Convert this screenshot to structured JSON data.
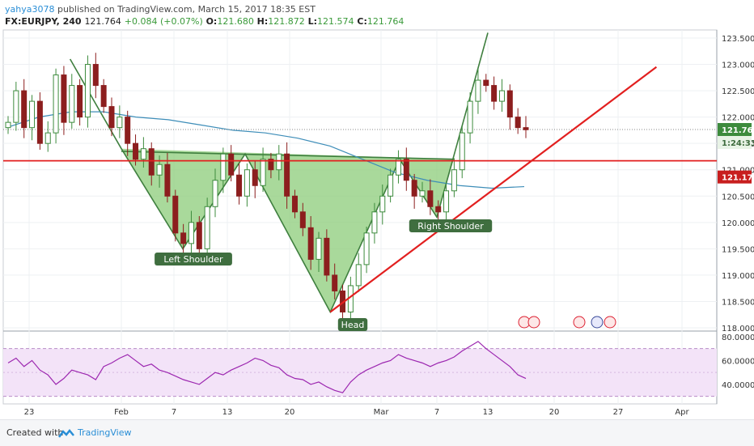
{
  "header": {
    "author": "yahya3078",
    "published_text": "published on TradingView.com, March 15, 2017 18:35 EST"
  },
  "quote": {
    "symbol": "FX:EURJPY, 240",
    "last": "121.764",
    "change": "+0.084 (+0.07%)",
    "o_label": "O:",
    "o": "121.680",
    "h_label": "H:",
    "h": "121.872",
    "l_label": "L:",
    "l": "121.574",
    "c_label": "C:",
    "c": "121.764"
  },
  "footer": {
    "created_label": "Created with",
    "brand": "TradingView"
  },
  "colors": {
    "bull": "#3d8b3d",
    "bear": "#8c1e1e",
    "pattern_fill": "#8ccc7a",
    "trend_red": "#e21f1f",
    "ma": "#3d8db8",
    "rsi": "#9c27b0",
    "rsi_band": "#f3e3f8"
  },
  "chart_data": [
    {
      "type": "candlestick",
      "symbol": "FX:EURJPY",
      "interval": "240",
      "y_axis_ticks": [
        "123.500",
        "123.000",
        "122.500",
        "122.000",
        "121.500",
        "121.000",
        "120.500",
        "120.000",
        "119.500",
        "119.000",
        "118.500",
        "118.000"
      ],
      "ylim": [
        118.0,
        123.6
      ],
      "x_axis_ticks": [
        "23",
        "Feb",
        "7",
        "13",
        "20",
        "Mar",
        "7",
        "13",
        "20",
        "27",
        "Apr"
      ],
      "price_labels": {
        "last": "121.764",
        "countdown": "1:24:33",
        "horizontal_line": "121.170"
      },
      "horizontal_line_level": 121.17,
      "pattern": {
        "name": "Inverse Head and Shoulders",
        "labels": [
          "Left Shoulder",
          "Head",
          "Right Shoulder"
        ],
        "points": [
          {
            "date": "Jan 27",
            "price": 123.1
          },
          {
            "date": "Feb 1",
            "price": 121.4
          },
          {
            "date": "Feb 8",
            "price": 119.5
          },
          {
            "date": "Feb 15",
            "price": 121.3
          },
          {
            "date": "Feb 24",
            "price": 118.3
          },
          {
            "date": "Mar 3",
            "price": 121.2
          },
          {
            "date": "Mar 7",
            "price": 120.1
          },
          {
            "date": "Mar 13",
            "price": 123.6
          }
        ],
        "neckline": [
          {
            "date": "Feb 1",
            "price": 121.35
          },
          {
            "date": "Mar 9",
            "price": 121.2
          }
        ]
      },
      "trendline": [
        {
          "date": "Feb 24",
          "price": 118.3
        },
        {
          "date": "Mar 30",
          "price": 122.95
        }
      ],
      "ma_series": [
        {
          "x": 0,
          "y": 121.8
        },
        {
          "x": 40,
          "y": 122.0
        },
        {
          "x": 80,
          "y": 122.1
        },
        {
          "x": 120,
          "y": 122.1
        },
        {
          "x": 160,
          "y": 122.0
        },
        {
          "x": 200,
          "y": 121.95
        },
        {
          "x": 240,
          "y": 121.85
        },
        {
          "x": 280,
          "y": 121.75
        },
        {
          "x": 320,
          "y": 121.7
        },
        {
          "x": 360,
          "y": 121.6
        },
        {
          "x": 400,
          "y": 121.45
        },
        {
          "x": 440,
          "y": 121.2
        },
        {
          "x": 480,
          "y": 120.95
        },
        {
          "x": 520,
          "y": 120.8
        },
        {
          "x": 560,
          "y": 120.7
        },
        {
          "x": 600,
          "y": 120.65
        },
        {
          "x": 640,
          "y": 120.68
        }
      ],
      "closes": [
        121.9,
        122.5,
        121.8,
        122.3,
        121.5,
        121.7,
        122.8,
        121.9,
        122.6,
        122.0,
        123.0,
        122.6,
        122.2,
        121.8,
        122.0,
        121.5,
        121.2,
        121.4,
        120.9,
        121.1,
        120.5,
        119.8,
        119.6,
        120.0,
        119.5,
        120.3,
        120.8,
        121.3,
        120.9,
        120.5,
        121.0,
        120.7,
        121.2,
        121.0,
        121.3,
        120.5,
        120.2,
        119.9,
        119.3,
        119.7,
        119.0,
        118.7,
        118.3,
        118.8,
        119.2,
        119.8,
        120.2,
        120.5,
        120.9,
        121.2,
        120.8,
        120.5,
        120.6,
        120.3,
        120.2,
        120.6,
        121.0,
        121.7,
        122.3,
        122.7,
        122.6,
        122.3,
        122.5,
        122.0,
        121.8,
        121.76
      ],
      "rsi": {
        "ticks": [
          "80.0000",
          "60.0000",
          "40.0000"
        ],
        "ylim": [
          25,
          82
        ],
        "upper": 70,
        "lower": 30,
        "values": [
          58,
          62,
          55,
          60,
          52,
          48,
          40,
          45,
          52,
          50,
          48,
          44,
          55,
          58,
          62,
          65,
          60,
          55,
          57,
          52,
          50,
          47,
          44,
          42,
          40,
          45,
          50,
          48,
          52,
          55,
          58,
          62,
          60,
          56,
          54,
          48,
          45,
          44,
          40,
          42,
          38,
          35,
          33,
          42,
          48,
          52,
          55,
          58,
          60,
          65,
          62,
          60,
          58,
          55,
          58,
          60,
          63,
          68,
          72,
          76,
          70,
          65,
          60,
          55,
          48,
          45
        ]
      }
    }
  ]
}
